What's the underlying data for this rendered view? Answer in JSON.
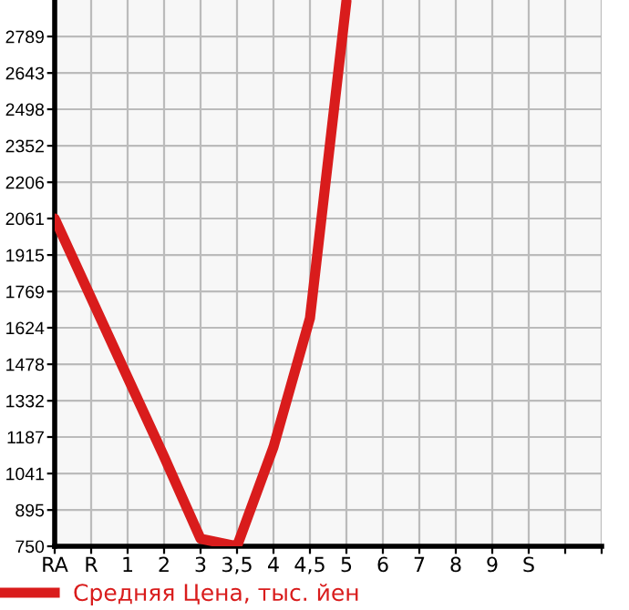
{
  "chart_data": {
    "type": "line",
    "categories": [
      "RA",
      "R",
      "1",
      "2",
      "3",
      "3,5",
      "4",
      "4,5",
      "5",
      "6",
      "7",
      "8",
      "9",
      "S",
      null,
      null
    ],
    "series": [
      {
        "name": "Средняя Цена, тыс. йен",
        "color": "#d91c1c",
        "values": [
          2061,
          1743,
          1425,
          1108,
          780,
          750,
          1147,
          1662,
          2930,
          null,
          null,
          null,
          null,
          null,
          null,
          null
        ]
      }
    ],
    "ylim": [
      750,
      2935
    ],
    "yticks": [
      750,
      895,
      1041,
      1187,
      1332,
      1478,
      1624,
      1769,
      1915,
      2061,
      2206,
      2352,
      2498,
      2643,
      2789
    ],
    "grid": true,
    "legend": "bottom",
    "marker": "none",
    "line_style": "solid"
  }
}
